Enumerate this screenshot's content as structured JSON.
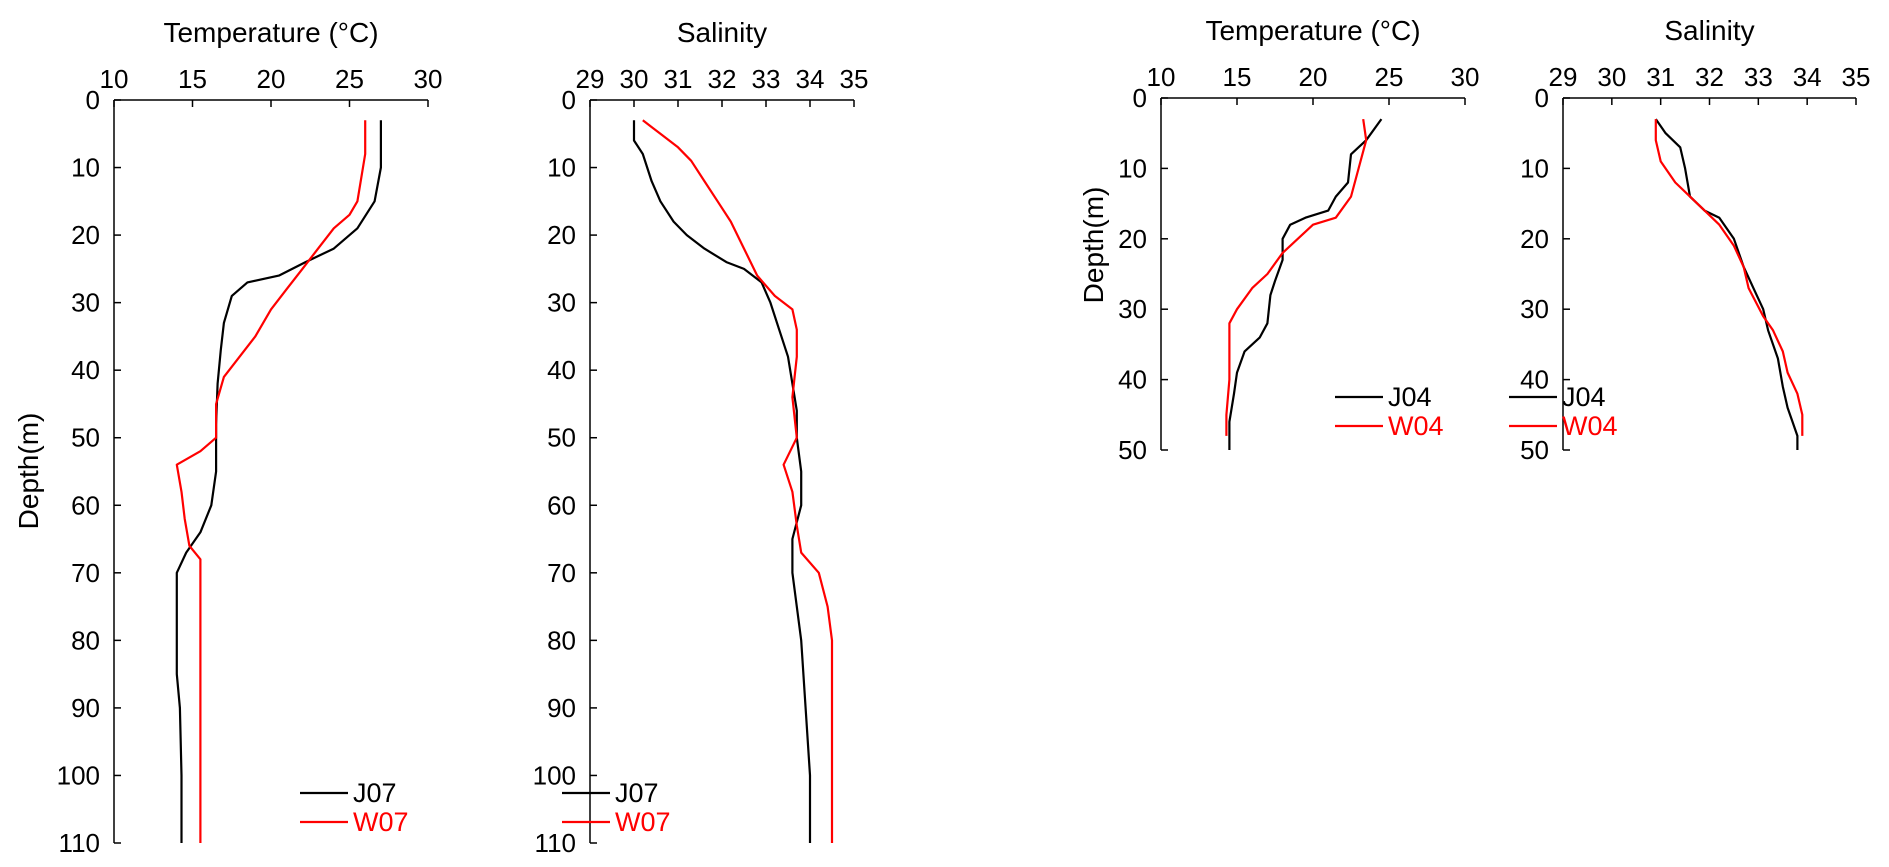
{
  "figure": {
    "ylabel": "Depth(m)"
  },
  "chart_data": [
    {
      "type": "line",
      "title": "Temperature (°C)",
      "xlabel": "",
      "ylabel": "Depth(m)",
      "xlim": [
        10,
        30
      ],
      "ylim": [
        0,
        110
      ],
      "x_ticks": [
        10,
        15,
        20,
        25,
        30
      ],
      "y_ticks": [
        0,
        10,
        20,
        30,
        40,
        50,
        60,
        70,
        80,
        90,
        100,
        110
      ],
      "y_reversed": true,
      "legend_position": "bottom-right",
      "series": [
        {
          "name": "J07",
          "color": "#000000",
          "points": [
            [
              27.0,
              3
            ],
            [
              27.0,
              10
            ],
            [
              26.6,
              15
            ],
            [
              25.5,
              19
            ],
            [
              24.0,
              22
            ],
            [
              22.2,
              24
            ],
            [
              20.5,
              26
            ],
            [
              18.5,
              27
            ],
            [
              17.5,
              29
            ],
            [
              17.0,
              33
            ],
            [
              16.8,
              37
            ],
            [
              16.6,
              42
            ],
            [
              16.5,
              48
            ],
            [
              16.5,
              55
            ],
            [
              16.2,
              60
            ],
            [
              15.5,
              64
            ],
            [
              14.6,
              67
            ],
            [
              14.0,
              70
            ],
            [
              14.0,
              73
            ],
            [
              14.0,
              80
            ],
            [
              14.0,
              85
            ],
            [
              14.2,
              90
            ],
            [
              14.3,
              100
            ],
            [
              14.3,
              110
            ]
          ]
        },
        {
          "name": "W07",
          "color": "#ff0000",
          "points": [
            [
              26.0,
              3
            ],
            [
              26.0,
              8
            ],
            [
              25.5,
              15
            ],
            [
              25.0,
              17
            ],
            [
              24.0,
              19
            ],
            [
              23.0,
              22
            ],
            [
              22.0,
              25
            ],
            [
              21.0,
              28
            ],
            [
              20.0,
              31
            ],
            [
              19.0,
              35
            ],
            [
              18.0,
              38
            ],
            [
              17.0,
              41
            ],
            [
              16.5,
              45
            ],
            [
              16.5,
              50
            ],
            [
              15.5,
              52
            ],
            [
              14.0,
              54
            ],
            [
              14.3,
              58
            ],
            [
              14.5,
              62
            ],
            [
              14.8,
              66
            ],
            [
              15.5,
              68
            ],
            [
              15.5,
              75
            ],
            [
              15.5,
              90
            ],
            [
              15.5,
              110
            ]
          ]
        }
      ]
    },
    {
      "type": "line",
      "title": "Salinity",
      "xlabel": "",
      "ylabel": "",
      "xlim": [
        29,
        35
      ],
      "ylim": [
        0,
        110
      ],
      "x_ticks": [
        29,
        30,
        31,
        32,
        33,
        34,
        35
      ],
      "y_ticks": [
        0,
        10,
        20,
        30,
        40,
        50,
        60,
        70,
        80,
        90,
        100,
        110
      ],
      "y_reversed": true,
      "legend_position": "bottom-left",
      "series": [
        {
          "name": "J07",
          "color": "#000000",
          "points": [
            [
              30.0,
              3
            ],
            [
              30.0,
              6
            ],
            [
              30.2,
              8
            ],
            [
              30.4,
              12
            ],
            [
              30.6,
              15
            ],
            [
              30.9,
              18
            ],
            [
              31.2,
              20
            ],
            [
              31.6,
              22
            ],
            [
              32.1,
              24
            ],
            [
              32.5,
              25
            ],
            [
              32.9,
              27
            ],
            [
              33.1,
              30
            ],
            [
              33.3,
              34
            ],
            [
              33.5,
              38
            ],
            [
              33.6,
              42
            ],
            [
              33.7,
              46
            ],
            [
              33.7,
              50
            ],
            [
              33.8,
              55
            ],
            [
              33.8,
              60
            ],
            [
              33.6,
              65
            ],
            [
              33.6,
              70
            ],
            [
              33.7,
              75
            ],
            [
              33.8,
              80
            ],
            [
              33.9,
              90
            ],
            [
              34.0,
              100
            ],
            [
              34.0,
              110
            ]
          ]
        },
        {
          "name": "W07",
          "color": "#ff0000",
          "points": [
            [
              30.2,
              3
            ],
            [
              30.6,
              5
            ],
            [
              31.0,
              7
            ],
            [
              31.3,
              9
            ],
            [
              31.6,
              12
            ],
            [
              31.9,
              15
            ],
            [
              32.2,
              18
            ],
            [
              32.5,
              22
            ],
            [
              32.8,
              26
            ],
            [
              33.2,
              29
            ],
            [
              33.6,
              31
            ],
            [
              33.7,
              34
            ],
            [
              33.7,
              38
            ],
            [
              33.6,
              44
            ],
            [
              33.7,
              50
            ],
            [
              33.4,
              54
            ],
            [
              33.6,
              58
            ],
            [
              33.7,
              63
            ],
            [
              33.8,
              67
            ],
            [
              34.2,
              70
            ],
            [
              34.4,
              75
            ],
            [
              34.5,
              80
            ],
            [
              34.5,
              90
            ],
            [
              34.5,
              110
            ]
          ]
        }
      ]
    },
    {
      "type": "line",
      "title": "Temperature (°C)",
      "xlabel": "",
      "ylabel": "Depth(m)",
      "xlim": [
        10,
        30
      ],
      "ylim": [
        0,
        50
      ],
      "x_ticks": [
        10,
        15,
        20,
        25,
        30
      ],
      "y_ticks": [
        0,
        10,
        20,
        30,
        40,
        50
      ],
      "y_reversed": true,
      "legend_position": "bottom-right",
      "series": [
        {
          "name": "J04",
          "color": "#000000",
          "points": [
            [
              24.5,
              3
            ],
            [
              23.5,
              6
            ],
            [
              22.5,
              8
            ],
            [
              22.3,
              12
            ],
            [
              21.5,
              14
            ],
            [
              21.0,
              16
            ],
            [
              19.5,
              17
            ],
            [
              18.5,
              18
            ],
            [
              18.0,
              20
            ],
            [
              18.0,
              23
            ],
            [
              17.5,
              26
            ],
            [
              17.2,
              28
            ],
            [
              17.0,
              32
            ],
            [
              16.5,
              34
            ],
            [
              15.5,
              36
            ],
            [
              15.0,
              39
            ],
            [
              14.8,
              42
            ],
            [
              14.5,
              46
            ],
            [
              14.5,
              50
            ]
          ]
        },
        {
          "name": "W04",
          "color": "#ff0000",
          "points": [
            [
              23.3,
              3
            ],
            [
              23.5,
              6
            ],
            [
              23.0,
              10
            ],
            [
              22.5,
              14
            ],
            [
              21.5,
              17
            ],
            [
              20.0,
              18
            ],
            [
              19.0,
              20
            ],
            [
              18.0,
              22
            ],
            [
              17.0,
              25
            ],
            [
              16.0,
              27
            ],
            [
              15.0,
              30
            ],
            [
              14.5,
              32
            ],
            [
              14.5,
              40
            ],
            [
              14.3,
              45
            ],
            [
              14.3,
              48
            ]
          ]
        }
      ]
    },
    {
      "type": "line",
      "title": "Salinity",
      "xlabel": "",
      "ylabel": "",
      "xlim": [
        29,
        35
      ],
      "ylim": [
        0,
        50
      ],
      "x_ticks": [
        29,
        30,
        31,
        32,
        33,
        34,
        35
      ],
      "y_ticks": [
        0,
        10,
        20,
        30,
        40,
        50
      ],
      "y_reversed": true,
      "legend_position": "bottom-left",
      "series": [
        {
          "name": "J04",
          "color": "#000000",
          "points": [
            [
              30.9,
              3
            ],
            [
              31.1,
              5
            ],
            [
              31.4,
              7
            ],
            [
              31.5,
              10
            ],
            [
              31.6,
              14
            ],
            [
              31.9,
              16
            ],
            [
              32.2,
              17
            ],
            [
              32.5,
              20
            ],
            [
              32.7,
              24
            ],
            [
              32.9,
              27
            ],
            [
              33.1,
              30
            ],
            [
              33.2,
              33
            ],
            [
              33.4,
              37
            ],
            [
              33.5,
              41
            ],
            [
              33.6,
              44
            ],
            [
              33.7,
              46
            ],
            [
              33.8,
              48
            ],
            [
              33.8,
              50
            ]
          ]
        },
        {
          "name": "W04",
          "color": "#ff0000",
          "points": [
            [
              30.9,
              3
            ],
            [
              30.9,
              6
            ],
            [
              31.0,
              9
            ],
            [
              31.3,
              12
            ],
            [
              31.6,
              14
            ],
            [
              31.9,
              16
            ],
            [
              32.2,
              18
            ],
            [
              32.5,
              21
            ],
            [
              32.7,
              24
            ],
            [
              32.8,
              27
            ],
            [
              33.1,
              31
            ],
            [
              33.3,
              33
            ],
            [
              33.5,
              36
            ],
            [
              33.6,
              39
            ],
            [
              33.8,
              42
            ],
            [
              33.9,
              45
            ],
            [
              33.9,
              48
            ]
          ]
        }
      ]
    }
  ]
}
